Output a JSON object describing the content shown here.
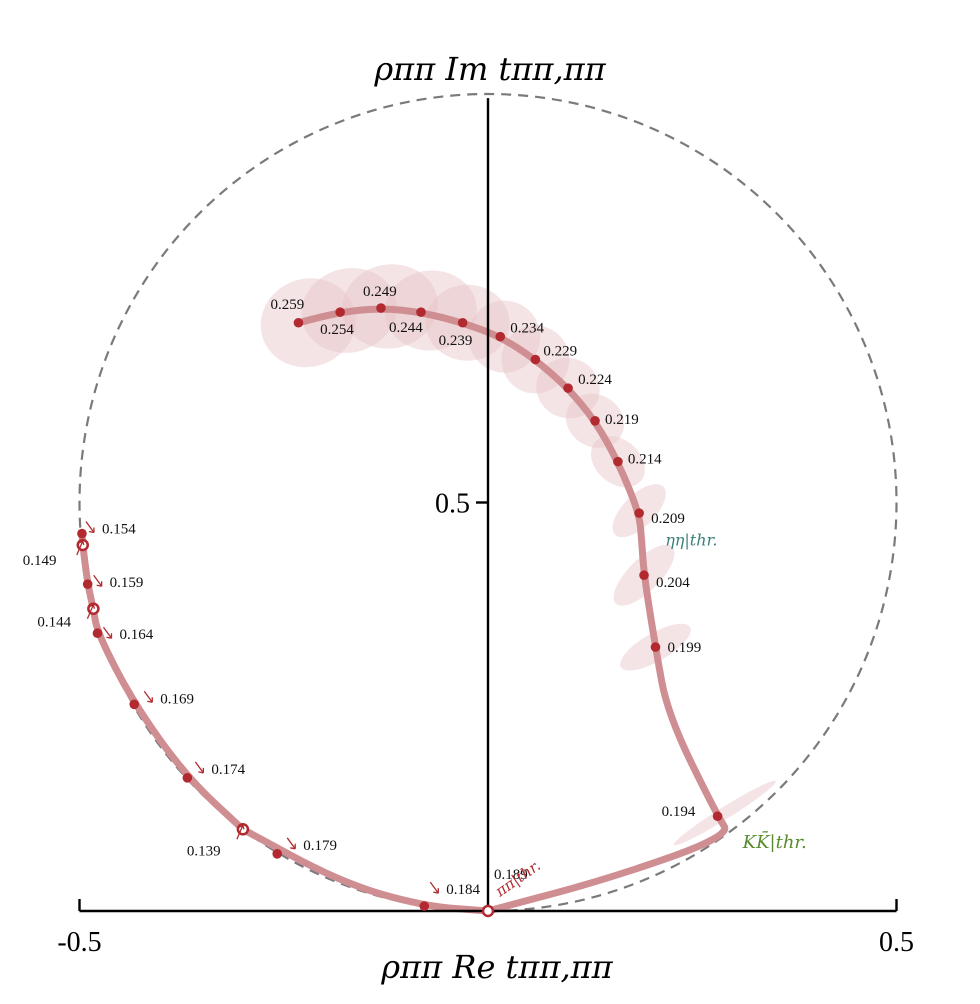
{
  "chart_data": {
    "type": "scatter",
    "title": "",
    "ylabel": "ρππ Im tππ,ππ",
    "xlabel": "ρππ Re tππ,ππ",
    "xlim": [
      -0.5,
      0.5
    ],
    "ylim": [
      0,
      1
    ],
    "x_ticks": [
      -0.5,
      0.5
    ],
    "y_ticks": [
      0.5
    ],
    "x_tick_labels": [
      "-0.5",
      "0.5"
    ],
    "y_tick_labels": [
      "0.5"
    ],
    "unitarity_circle": {
      "center": [
        0,
        0.5
      ],
      "radius": 0.5,
      "style": "dashed"
    },
    "colors": {
      "curve": "#cf8e92",
      "point": "#b22a2f",
      "band": "#e7c3c5",
      "eta_label": "#3d7f7b",
      "kk_label": "#5a8c2f",
      "pipi_label": "#b22a2f"
    },
    "thresholds": [
      {
        "label": "ηη|thr.",
        "x": 0.19,
        "y": 0.455
      },
      {
        "label": "KK̄|thr.",
        "x": 0.297,
        "y": 0.092
      },
      {
        "label": "ππ|thr.",
        "x": 0.0,
        "y": 0.0
      }
    ],
    "series": [
      {
        "name": "",
        "points": [
          {
            "label": "0.139",
            "x": -0.3,
            "y": 0.1,
            "hollow": true,
            "arrow": "up"
          },
          {
            "label": "0.144",
            "x": -0.483,
            "y": 0.37,
            "hollow": true,
            "arrow": "up"
          },
          {
            "label": "0.149",
            "x": -0.496,
            "y": 0.448,
            "hollow": true,
            "arrow": "up"
          },
          {
            "label": "0.154",
            "x": -0.497,
            "y": 0.462,
            "hollow": false,
            "arrow": "down"
          },
          {
            "label": "0.159",
            "x": -0.49,
            "y": 0.4,
            "hollow": false,
            "arrow": "down"
          },
          {
            "label": "0.164",
            "x": -0.478,
            "y": 0.34,
            "hollow": false,
            "arrow": "down"
          },
          {
            "label": "0.169",
            "x": -0.433,
            "y": 0.253,
            "hollow": false,
            "arrow": "down"
          },
          {
            "label": "0.174",
            "x": -0.368,
            "y": 0.163,
            "hollow": false,
            "arrow": "down"
          },
          {
            "label": "0.179",
            "x": -0.258,
            "y": 0.07,
            "hollow": false,
            "arrow": "down"
          },
          {
            "label": "0.184",
            "x": -0.078,
            "y": 0.006,
            "hollow": false,
            "arrow": "down"
          },
          {
            "label": "0.189",
            "x": 0.0,
            "y": 0.0,
            "hollow": true,
            "arrow": "none"
          },
          {
            "label": "0.194",
            "x": 0.281,
            "y": 0.116,
            "hollow": false,
            "arrow": "none"
          },
          {
            "label": "0.199",
            "x": 0.205,
            "y": 0.323,
            "hollow": false,
            "arrow": "none"
          },
          {
            "label": "0.204",
            "x": 0.191,
            "y": 0.411,
            "hollow": false,
            "arrow": "none"
          },
          {
            "label": "0.209",
            "x": 0.185,
            "y": 0.487,
            "hollow": false,
            "arrow": "none"
          },
          {
            "label": "0.214",
            "x": 0.159,
            "y": 0.55,
            "hollow": false,
            "arrow": "none"
          },
          {
            "label": "0.219",
            "x": 0.131,
            "y": 0.6,
            "hollow": false,
            "arrow": "none"
          },
          {
            "label": "0.224",
            "x": 0.098,
            "y": 0.64,
            "hollow": false,
            "arrow": "none"
          },
          {
            "label": "0.229",
            "x": 0.058,
            "y": 0.675,
            "hollow": false,
            "arrow": "none"
          },
          {
            "label": "0.234",
            "x": 0.015,
            "y": 0.703,
            "hollow": false,
            "arrow": "none"
          },
          {
            "label": "0.239",
            "x": -0.031,
            "y": 0.72,
            "hollow": false,
            "arrow": "none"
          },
          {
            "label": "0.244",
            "x": -0.082,
            "y": 0.733,
            "hollow": false,
            "arrow": "none"
          },
          {
            "label": "0.249",
            "x": -0.131,
            "y": 0.738,
            "hollow": false,
            "arrow": "none"
          },
          {
            "label": "0.254",
            "x": -0.181,
            "y": 0.733,
            "hollow": false,
            "arrow": "none"
          },
          {
            "label": "0.259",
            "x": -0.232,
            "y": 0.72,
            "hollow": false,
            "arrow": "none"
          }
        ]
      }
    ],
    "curve_order": [
      "0.139",
      "0.189",
      "0.184",
      "0.179",
      "0.174",
      "0.169",
      "0.164",
      "0.144",
      "0.159",
      "0.149",
      "0.154"
    ],
    "upper_branch_order": [
      "0.189",
      "KK",
      "0.194",
      "0.199",
      "0.204",
      "eta",
      "0.209",
      "0.214",
      "0.219",
      "0.224",
      "0.229",
      "0.234",
      "0.239",
      "0.244",
      "0.249",
      "0.254",
      "0.259"
    ]
  }
}
